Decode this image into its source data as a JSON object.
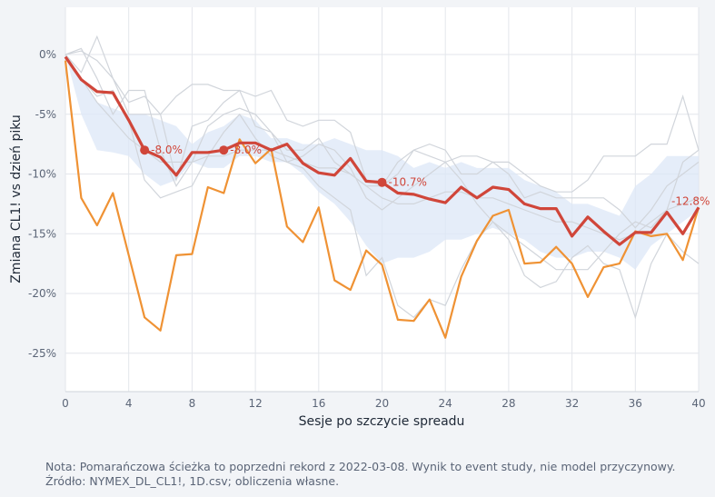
{
  "chart_data": {
    "type": "line",
    "xlabel": "Sesje po szczycie spreadu",
    "ylabel": "Zmiana CL1! vs dzień piku",
    "xlim": [
      0,
      40
    ],
    "ylim": [
      -28,
      4
    ],
    "x_ticks": [
      0,
      4,
      8,
      12,
      16,
      20,
      24,
      28,
      32,
      36,
      40
    ],
    "y_ticks": [
      0,
      -5,
      -10,
      -15,
      -20,
      -25
    ],
    "y_tick_labels": [
      "0%",
      "-5%",
      "-10%",
      "-15%",
      "-20%",
      "-25%"
    ],
    "grid": true,
    "band": {
      "x": [
        0,
        1,
        2,
        3,
        4,
        5,
        6,
        7,
        8,
        9,
        10,
        11,
        12,
        13,
        14,
        15,
        16,
        17,
        18,
        19,
        20,
        21,
        22,
        23,
        24,
        25,
        26,
        27,
        28,
        29,
        30,
        31,
        32,
        33,
        34,
        35,
        36,
        37,
        38,
        39,
        40
      ],
      "upper": [
        0,
        -2,
        -4,
        -4.5,
        -5,
        -5,
        -5.5,
        -6,
        -7.5,
        -6.5,
        -6,
        -5,
        -5.5,
        -7,
        -7,
        -7.5,
        -7.5,
        -7,
        -7.5,
        -8,
        -8,
        -8.5,
        -9.5,
        -9,
        -9.5,
        -9,
        -9.5,
        -9.5,
        -9.5,
        -10.5,
        -11,
        -11.5,
        -12.5,
        -12.5,
        -13,
        -13.5,
        -11,
        -10,
        -8.5,
        -8.5,
        -8.5
      ],
      "lower": [
        0,
        -5,
        -8,
        -8.2,
        -8.5,
        -10,
        -11,
        -10.5,
        -9,
        -9.5,
        -9.5,
        -8.5,
        -8.5,
        -9,
        -9,
        -10,
        -11.5,
        -12.5,
        -14,
        -16,
        -17.5,
        -17,
        -17,
        -16.5,
        -15.5,
        -15.5,
        -15,
        -14.5,
        -15,
        -15.5,
        -16.5,
        -17,
        -17,
        -16.5,
        -16.5,
        -17,
        -18,
        -16,
        -15,
        -14,
        -13
      ]
    },
    "background_series": [
      {
        "x": [
          0,
          1,
          2,
          3,
          4,
          5,
          6,
          7,
          8,
          9,
          10,
          11,
          12,
          13,
          14,
          15,
          16,
          17,
          18,
          19,
          20,
          21,
          22,
          23,
          24,
          25,
          26,
          27,
          28,
          29,
          30,
          31,
          32,
          33,
          34,
          35,
          36,
          37,
          38,
          39,
          40
        ],
        "values": [
          0,
          0.5,
          -2,
          -5,
          -3,
          -3,
          -8,
          -11,
          -9,
          -6,
          -5,
          -4.5,
          -5,
          -6.5,
          -8,
          -8,
          -7,
          -9,
          -10,
          -11,
          -11,
          -10,
          -8,
          -8.5,
          -9,
          -8.5,
          -8.5,
          -9,
          -10,
          -12,
          -11.5,
          -12,
          -12,
          -12,
          -12,
          -13,
          -14.5,
          -13,
          -11,
          -10,
          -9
        ]
      },
      {
        "x": [
          0,
          1,
          2,
          3,
          4,
          5,
          6,
          7,
          8,
          9,
          10,
          11,
          12,
          13,
          14,
          15,
          16,
          17,
          18,
          19,
          20,
          21,
          22,
          23,
          24,
          25,
          26,
          27,
          28,
          29,
          30,
          31,
          32,
          33,
          34,
          35,
          36,
          37,
          38,
          39,
          40
        ],
        "values": [
          0,
          -1.5,
          1.5,
          -2,
          -4,
          -3.5,
          -5,
          -10.5,
          -6,
          -5.5,
          -4,
          -3,
          -6,
          -6.5,
          -9,
          -8.5,
          -7.5,
          -8,
          -9.5,
          -12,
          -13,
          -12,
          -11,
          -10,
          -9,
          -10.5,
          -12.5,
          -14,
          -15,
          -16,
          -17,
          -18,
          -18,
          -18,
          -16.5,
          -15,
          -14,
          -14.5,
          -13,
          -9,
          -8
        ]
      },
      {
        "x": [
          0,
          1,
          2,
          3,
          4,
          5,
          6,
          7,
          8,
          9,
          10,
          11,
          12,
          13,
          14,
          15,
          16,
          17,
          18,
          19,
          20,
          21,
          22,
          23,
          24,
          25,
          26,
          27,
          28,
          29,
          30,
          31,
          32,
          33,
          34,
          35,
          36,
          37,
          38,
          39,
          40
        ],
        "values": [
          0,
          0.3,
          -0.5,
          -2,
          -5,
          -5,
          -5,
          -3.5,
          -2.5,
          -2.5,
          -3,
          -3,
          -3.5,
          -3,
          -5.5,
          -6,
          -5.5,
          -5.5,
          -6.5,
          -10.5,
          -11,
          -9,
          -8,
          -7.5,
          -8,
          -10,
          -10,
          -9,
          -9,
          -10,
          -11,
          -11.5,
          -11.5,
          -10.5,
          -8.5,
          -8.5,
          -8.5,
          -7.5,
          -7.5,
          -3.5,
          -8
        ]
      },
      {
        "x": [
          0,
          1,
          2,
          3,
          4,
          5,
          6,
          7,
          8,
          9,
          10,
          11,
          12,
          13,
          14,
          15,
          16,
          17,
          18,
          19,
          20,
          21,
          22,
          23,
          24,
          25,
          26,
          27,
          28,
          29,
          30,
          31,
          32,
          33,
          34,
          35,
          36,
          37,
          38,
          39,
          40
        ],
        "values": [
          0,
          -2,
          -3.5,
          -3,
          -5.5,
          -10.5,
          -12,
          -11.5,
          -11,
          -8.5,
          -6.5,
          -5,
          -7,
          -8.5,
          -9,
          -9.5,
          -11,
          -12,
          -13,
          -18.5,
          -17,
          -21,
          -22,
          -20.5,
          -21,
          -18,
          -15.5,
          -14,
          -15.5,
          -18.5,
          -19.5,
          -19,
          -17,
          -16,
          -17.5,
          -18,
          -22,
          -17.5,
          -15,
          -16.5,
          -17.5
        ]
      },
      {
        "x": [
          0,
          1,
          2,
          3,
          4,
          5,
          6,
          7,
          8,
          9,
          10,
          11,
          12,
          13,
          14,
          15,
          16,
          17,
          18,
          19,
          20,
          21,
          22,
          23,
          24,
          25,
          26,
          27,
          28,
          29,
          30,
          31,
          32,
          33,
          34,
          35,
          36,
          37,
          38,
          39,
          40
        ],
        "values": [
          0,
          -2,
          -4,
          -5.5,
          -7,
          -8,
          -9,
          -9,
          -9,
          -8.5,
          -8.5,
          -8,
          -8,
          -8,
          -8.5,
          -9,
          -9.5,
          -9.5,
          -10,
          -11,
          -12,
          -12.5,
          -12.5,
          -12,
          -11.5,
          -11.5,
          -12,
          -12,
          -12.5,
          -13,
          -13.5,
          -14,
          -14,
          -14.5,
          -15,
          -15.5,
          -15,
          -14,
          -13,
          -12.5,
          -12
        ]
      }
    ],
    "series": [
      {
        "color": "#ef9234",
        "x": [
          0,
          1,
          2,
          3,
          4,
          5,
          6,
          7,
          8,
          9,
          10,
          11,
          12,
          13,
          14,
          15,
          16,
          17,
          18,
          19,
          20,
          21,
          22,
          23,
          24,
          25,
          26,
          27,
          28,
          29,
          30,
          31,
          32,
          33,
          34,
          35,
          36,
          37,
          38,
          39,
          40
        ],
        "values": [
          -0.5,
          -12,
          -14.3,
          -11.6,
          -16.8,
          -22,
          -23.1,
          -16.8,
          -16.7,
          -11.1,
          -11.6,
          -7.1,
          -9.1,
          -7.9,
          -14.4,
          -15.7,
          -12.8,
          -18.9,
          -19.7,
          -16.4,
          -17.6,
          -22.2,
          -22.3,
          -20.5,
          -23.7,
          -18.6,
          -15.6,
          -13.5,
          -13,
          -17.5,
          -17.4,
          -16.1,
          -17.5,
          -20.3,
          -17.8,
          -17.5,
          -14.8,
          -15.2,
          -15,
          -17.2,
          -12.8
        ]
      },
      {
        "color": "#d0463a",
        "x": [
          0,
          1,
          2,
          3,
          4,
          5,
          6,
          7,
          8,
          9,
          10,
          11,
          12,
          13,
          14,
          15,
          16,
          17,
          18,
          19,
          20,
          21,
          22,
          23,
          24,
          25,
          26,
          27,
          28,
          29,
          30,
          31,
          32,
          33,
          34,
          35,
          36,
          37,
          38,
          39,
          40
        ],
        "values": [
          -0.2,
          -2.1,
          -3.1,
          -3.2,
          -5.5,
          -8.0,
          -8.6,
          -10.1,
          -8.2,
          -8.2,
          -8.0,
          -7.4,
          -7.4,
          -8.0,
          -7.5,
          -9.1,
          -9.9,
          -10.1,
          -8.7,
          -10.6,
          -10.7,
          -11.6,
          -11.7,
          -12.1,
          -12.4,
          -11.1,
          -12.0,
          -11.1,
          -11.3,
          -12.5,
          -12.9,
          -12.9,
          -15.2,
          -13.6,
          -14.8,
          -15.9,
          -14.9,
          -14.9,
          -13.2,
          -15.0,
          -12.8
        ]
      }
    ],
    "markers": [
      {
        "x": 5,
        "y": -8.0,
        "label": "-8.0%"
      },
      {
        "x": 10,
        "y": -8.0,
        "label": "-8.0%"
      },
      {
        "x": 20,
        "y": -10.7,
        "label": "-10.7%"
      },
      {
        "x": 40,
        "y": -12.8,
        "label": "-12.8%"
      }
    ]
  },
  "footer": {
    "note": "Nota: Pomarańczowa ścieżka to poprzedni rekord z 2022-03-08. Wynik to event study, nie model przyczynowy.",
    "source": "Źródło: NYMEX_DL_CL1!, 1D.csv; obliczenia własne."
  },
  "colors": {
    "background": "#f2f4f7",
    "plot_background": "#ffffff",
    "grid": "#e3e6eb",
    "band": "#dce7f7",
    "background_lines": "#d1d5db",
    "current": "#d0463a",
    "previous_record": "#ef9234"
  }
}
